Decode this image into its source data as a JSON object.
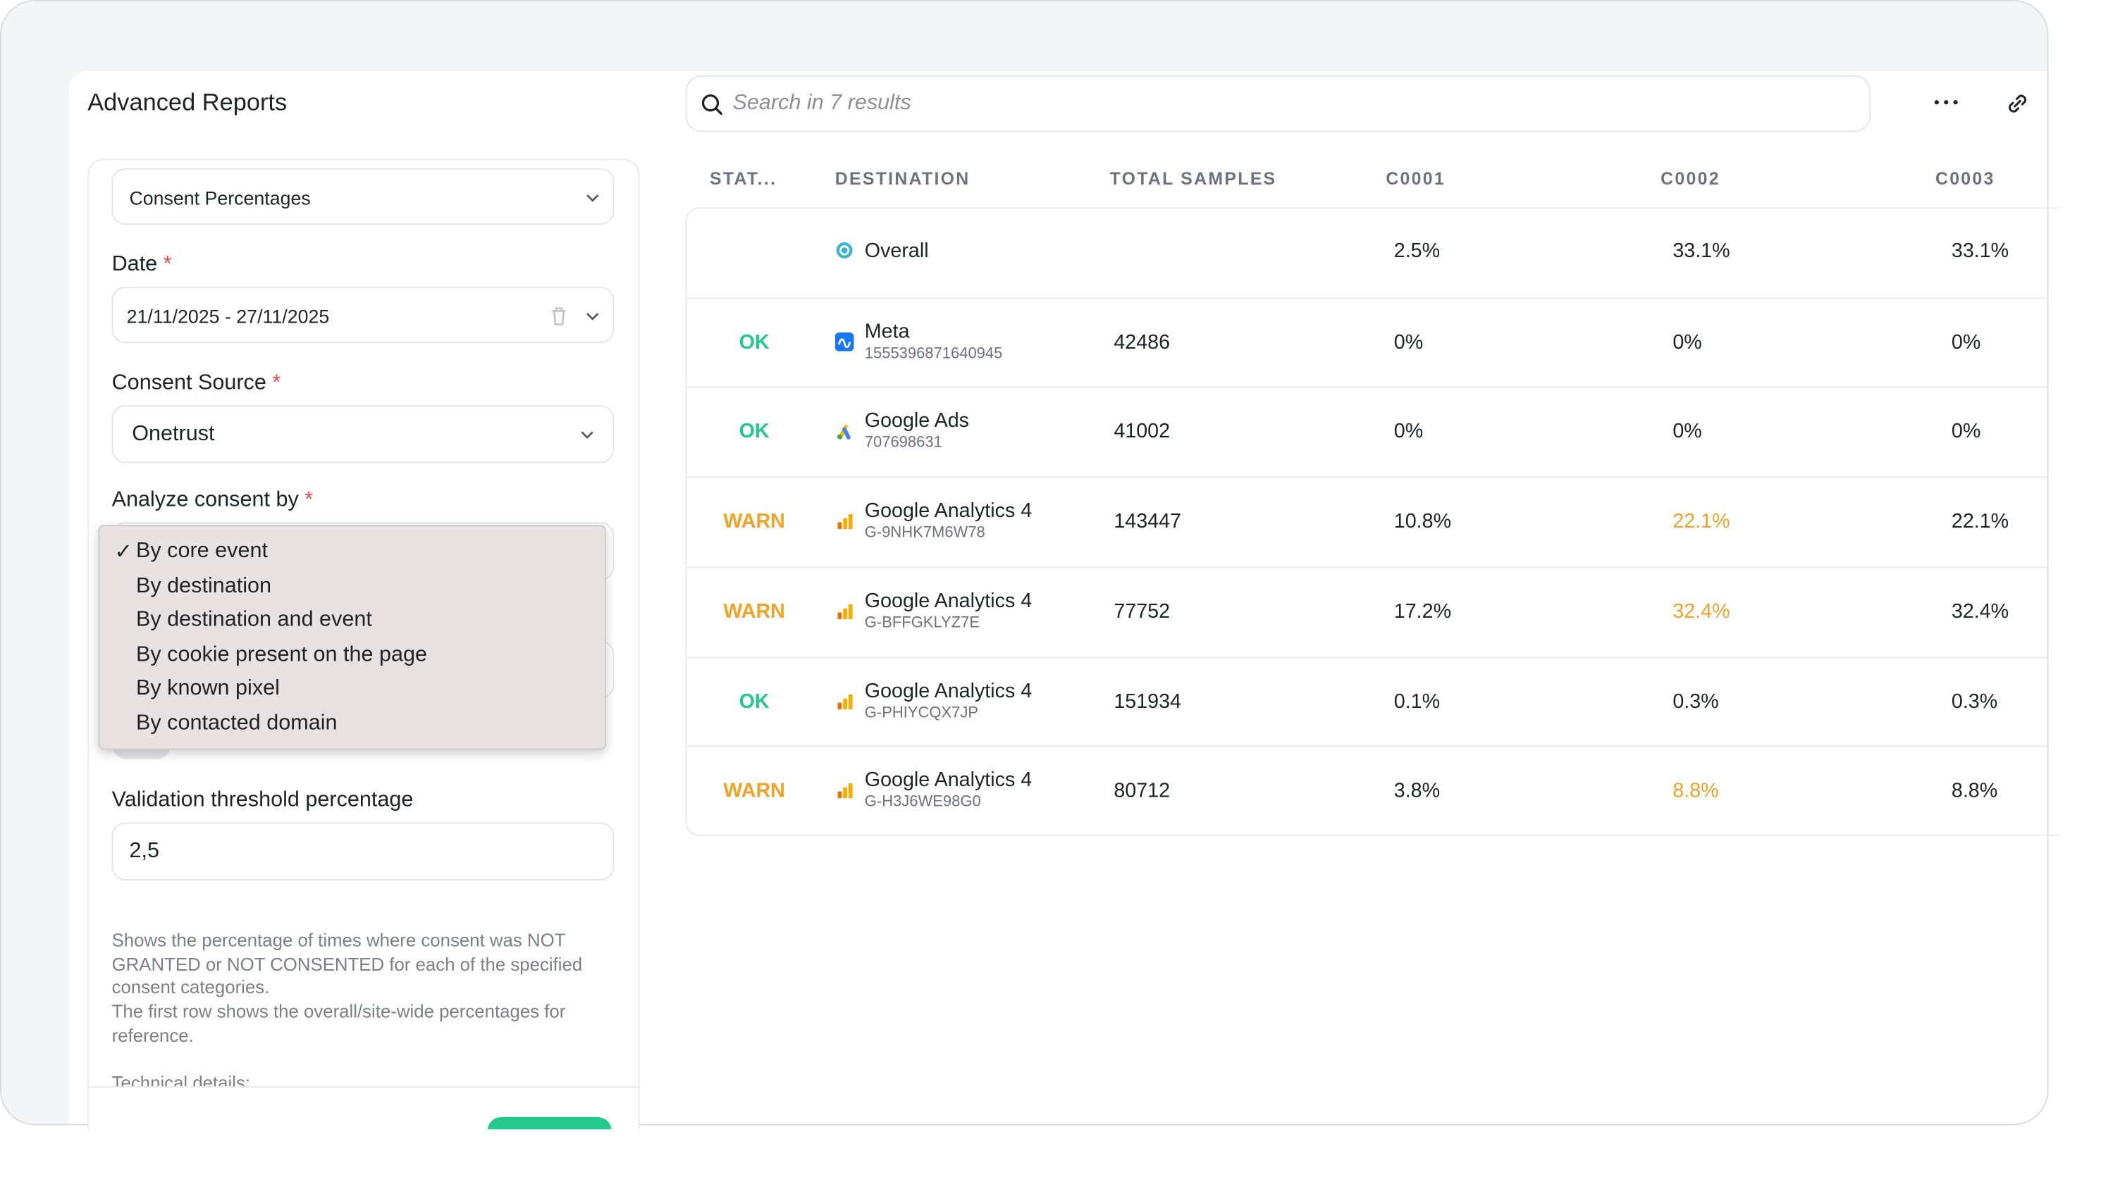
{
  "header": {
    "title": "Advanced Reports",
    "search_placeholder": "Search in 7 results"
  },
  "form": {
    "report_type": "Consent Percentages",
    "date_label": "Date",
    "date_value": "21/11/2025 - 27/11/2025",
    "source_label": "Consent Source",
    "source_value": "Onetrust",
    "analyze_label": "Analyze consent by",
    "analyze_options": [
      "By core event",
      "By destination",
      "By destination and event",
      "By cookie present on the page",
      "By known pixel",
      "By contacted domain"
    ],
    "threshold_label": "Validation threshold percentage",
    "threshold_value": "2,5",
    "description": [
      "Shows the percentage of times where consent was NOT GRANTED or NOT CONSENTED for each of the specified consent categories.",
      "The first row shows the overall/site-wide percentages for reference."
    ],
    "technical": "Technical details:"
  },
  "table": {
    "columns": [
      "STAT...",
      "DESTINATION",
      "TOTAL SAMPLES",
      "C0001",
      "C0002",
      "C0003"
    ],
    "rows": [
      {
        "status": "",
        "name": "Overall",
        "id": "",
        "samples": "",
        "c0001": "2.5%",
        "c0002": "33.1%",
        "c0003": "33.1%",
        "icon": "overall"
      },
      {
        "status": "OK",
        "status_color": "#22c98a",
        "name": "Meta",
        "id": "1555396871640945",
        "samples": "42486",
        "c0001": "0%",
        "c0002": "0%",
        "c0003": "0%",
        "icon": "meta"
      },
      {
        "status": "OK",
        "status_color": "#22c98a",
        "name": "Google Ads",
        "id": "707698631",
        "samples": "41002",
        "c0001": "0%",
        "c0002": "0%",
        "c0003": "0%",
        "icon": "ads"
      },
      {
        "status": "WARN",
        "status_color": "#f2a227",
        "highlight_color": "#f2a227",
        "name": "Google Analytics 4",
        "id": "G-9NHK7M6W78",
        "samples": "143447",
        "c0001": "10.8%",
        "c0002": "22.1%",
        "c0003": "22.1%",
        "icon": "ga4"
      },
      {
        "status": "WARN",
        "status_color": "#f2a227",
        "highlight_color": "#f2a227",
        "name": "Google Analytics 4",
        "id": "G-BFFGKLYZ7E",
        "samples": "77752",
        "c0001": "17.2%",
        "c0002": "32.4%",
        "c0003": "32.4%",
        "icon": "ga4"
      },
      {
        "status": "OK",
        "status_color": "#22c98a",
        "name": "Google Analytics 4",
        "id": "G-PHIYCQX7JP",
        "samples": "151934",
        "c0001": "0.1%",
        "c0002": "0.3%",
        "c0003": "0.3%",
        "icon": "ga4"
      },
      {
        "status": "WARN",
        "status_color": "#f2a227",
        "highlight_color": "#f2a227",
        "name": "Google Analytics 4",
        "id": "G-H3J6WE98G0",
        "samples": "80712",
        "c0001": "3.8%",
        "c0002": "8.8%",
        "c0003": "8.8%",
        "icon": "ga4"
      }
    ]
  }
}
